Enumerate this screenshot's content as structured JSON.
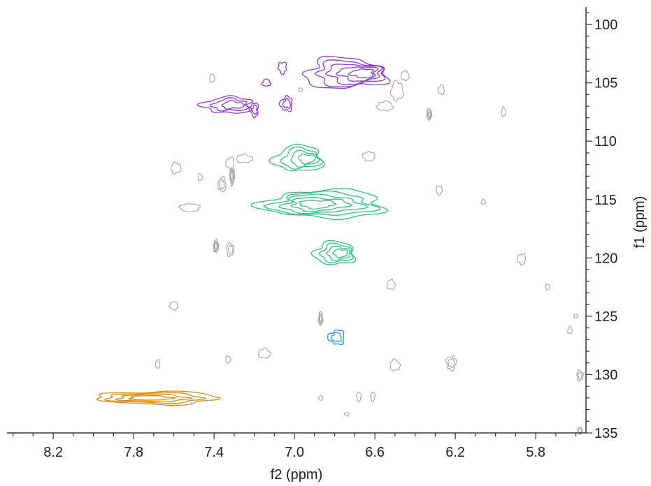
{
  "chart_data": {
    "type": "contour",
    "xlabel": "f2 (ppm)",
    "ylabel": "f1 (ppm)",
    "x_reversed": true,
    "y_reversed": true,
    "xlim": [
      8.43,
      5.55
    ],
    "ylim": [
      98.5,
      135
    ],
    "x_ticks": [
      8.2,
      7.8,
      7.4,
      7.0,
      6.6,
      6.2,
      5.8
    ],
    "y_ticks": [
      100,
      105,
      110,
      115,
      120,
      125,
      130,
      135
    ],
    "grid": false,
    "colors": {
      "purple": "#8a2be2",
      "green": "#22c07a",
      "blue": "#1e8fe0",
      "orange": "#d9860a",
      "gray": "#8c8c8c",
      "dark": "#444444"
    },
    "peaks": [
      {
        "group": "purple",
        "x": 6.75,
        "y": 104.2,
        "rx": 0.2,
        "ry": 1.3,
        "levels": 5
      },
      {
        "group": "purple",
        "x": 7.33,
        "y": 106.9,
        "rx": 0.12,
        "ry": 0.7,
        "levels": 3
      },
      {
        "group": "purple",
        "x": 7.2,
        "y": 107.3,
        "rx": 0.02,
        "ry": 0.6,
        "levels": 2
      },
      {
        "group": "purple",
        "x": 7.04,
        "y": 106.8,
        "rx": 0.03,
        "ry": 0.6,
        "levels": 2
      },
      {
        "group": "purple",
        "x": 7.06,
        "y": 103.7,
        "rx": 0.02,
        "ry": 0.5,
        "levels": 1
      },
      {
        "group": "purple",
        "x": 7.14,
        "y": 105.0,
        "rx": 0.02,
        "ry": 0.3,
        "levels": 1
      },
      {
        "group": "green",
        "x": 6.98,
        "y": 111.5,
        "rx": 0.12,
        "ry": 1.1,
        "levels": 4
      },
      {
        "group": "green",
        "x": 6.85,
        "y": 115.4,
        "rx": 0.3,
        "ry": 1.2,
        "levels": 5
      },
      {
        "group": "green",
        "x": 6.8,
        "y": 119.6,
        "rx": 0.1,
        "ry": 1.0,
        "levels": 4
      },
      {
        "group": "blue",
        "x": 6.79,
        "y": 126.8,
        "rx": 0.04,
        "ry": 0.6,
        "levels": 2
      },
      {
        "group": "orange",
        "x": 7.68,
        "y": 132.0,
        "rx": 0.3,
        "ry": 0.55,
        "levels": 4
      },
      {
        "group": "gray",
        "x": 7.41,
        "y": 104.6,
        "rx": 0.012,
        "ry": 0.35,
        "levels": 1
      },
      {
        "group": "gray",
        "x": 6.55,
        "y": 107.0,
        "rx": 0.04,
        "ry": 0.4,
        "levels": 1
      },
      {
        "group": "gray",
        "x": 6.49,
        "y": 105.7,
        "rx": 0.03,
        "ry": 0.8,
        "levels": 1
      },
      {
        "group": "gray",
        "x": 6.27,
        "y": 105.6,
        "rx": 0.015,
        "ry": 0.4,
        "levels": 1
      },
      {
        "group": "gray",
        "x": 6.33,
        "y": 107.7,
        "rx": 0.012,
        "ry": 0.5,
        "levels": 3
      },
      {
        "group": "gray",
        "x": 5.96,
        "y": 107.5,
        "rx": 0.008,
        "ry": 0.4,
        "levels": 1
      },
      {
        "group": "gray",
        "x": 6.45,
        "y": 104.4,
        "rx": 0.02,
        "ry": 0.4,
        "levels": 1
      },
      {
        "group": "gray",
        "x": 7.59,
        "y": 112.3,
        "rx": 0.025,
        "ry": 0.45,
        "levels": 1
      },
      {
        "group": "gray",
        "x": 7.32,
        "y": 111.9,
        "rx": 0.02,
        "ry": 0.5,
        "levels": 1
      },
      {
        "group": "gray",
        "x": 7.25,
        "y": 111.5,
        "rx": 0.04,
        "ry": 0.35,
        "levels": 1
      },
      {
        "group": "gray",
        "x": 7.31,
        "y": 113.0,
        "rx": 0.012,
        "ry": 0.7,
        "levels": 3
      },
      {
        "group": "gray",
        "x": 7.36,
        "y": 113.7,
        "rx": 0.02,
        "ry": 0.6,
        "levels": 2
      },
      {
        "group": "gray",
        "x": 7.47,
        "y": 113.1,
        "rx": 0.01,
        "ry": 0.3,
        "levels": 1
      },
      {
        "group": "gray",
        "x": 7.52,
        "y": 115.7,
        "rx": 0.05,
        "ry": 0.35,
        "levels": 1
      },
      {
        "group": "gray",
        "x": 6.63,
        "y": 111.3,
        "rx": 0.03,
        "ry": 0.4,
        "levels": 1
      },
      {
        "group": "gray",
        "x": 6.28,
        "y": 114.2,
        "rx": 0.015,
        "ry": 0.4,
        "levels": 1
      },
      {
        "group": "gray",
        "x": 6.06,
        "y": 115.2,
        "rx": 0.005,
        "ry": 0.2,
        "levels": 1
      },
      {
        "group": "gray",
        "x": 7.39,
        "y": 119.0,
        "rx": 0.012,
        "ry": 0.55,
        "levels": 3
      },
      {
        "group": "gray",
        "x": 7.32,
        "y": 119.3,
        "rx": 0.018,
        "ry": 0.55,
        "levels": 2
      },
      {
        "group": "gray",
        "x": 5.87,
        "y": 120.1,
        "rx": 0.02,
        "ry": 0.45,
        "levels": 1
      },
      {
        "group": "gray",
        "x": 6.52,
        "y": 122.3,
        "rx": 0.02,
        "ry": 0.4,
        "levels": 1
      },
      {
        "group": "gray",
        "x": 5.74,
        "y": 122.5,
        "rx": 0.005,
        "ry": 0.25,
        "levels": 1
      },
      {
        "group": "gray",
        "x": 7.6,
        "y": 124.1,
        "rx": 0.02,
        "ry": 0.35,
        "levels": 1
      },
      {
        "group": "gray",
        "x": 6.87,
        "y": 125.2,
        "rx": 0.008,
        "ry": 0.6,
        "levels": 3
      },
      {
        "group": "gray",
        "x": 5.63,
        "y": 126.2,
        "rx": 0.005,
        "ry": 0.3,
        "levels": 1
      },
      {
        "group": "gray",
        "x": 7.15,
        "y": 128.2,
        "rx": 0.03,
        "ry": 0.4,
        "levels": 1
      },
      {
        "group": "gray",
        "x": 7.33,
        "y": 128.7,
        "rx": 0.012,
        "ry": 0.3,
        "levels": 1
      },
      {
        "group": "gray",
        "x": 7.68,
        "y": 129.1,
        "rx": 0.01,
        "ry": 0.35,
        "levels": 1
      },
      {
        "group": "gray",
        "x": 6.5,
        "y": 129.2,
        "rx": 0.025,
        "ry": 0.45,
        "levels": 1
      },
      {
        "group": "gray",
        "x": 6.22,
        "y": 129.0,
        "rx": 0.025,
        "ry": 0.6,
        "levels": 2
      },
      {
        "group": "gray",
        "x": 5.58,
        "y": 130.1,
        "rx": 0.015,
        "ry": 0.45,
        "levels": 2
      },
      {
        "group": "gray",
        "x": 6.68,
        "y": 131.9,
        "rx": 0.005,
        "ry": 0.4,
        "levels": 1
      },
      {
        "group": "gray",
        "x": 6.61,
        "y": 131.9,
        "rx": 0.005,
        "ry": 0.4,
        "levels": 1
      },
      {
        "group": "gray",
        "x": 6.87,
        "y": 132.0,
        "rx": 0.003,
        "ry": 0.2,
        "levels": 1
      },
      {
        "group": "gray",
        "x": 6.74,
        "y": 133.4,
        "rx": 0.008,
        "ry": 0.15,
        "levels": 1
      },
      {
        "group": "gray",
        "x": 5.58,
        "y": 134.8,
        "rx": 0.012,
        "ry": 0.3,
        "levels": 2
      },
      {
        "group": "gray",
        "x": 6.97,
        "y": 105.6,
        "rx": 0.003,
        "ry": 0.15,
        "levels": 1
      },
      {
        "group": "gray",
        "x": 5.6,
        "y": 125.0,
        "rx": 0.003,
        "ry": 0.15,
        "levels": 1
      }
    ]
  }
}
